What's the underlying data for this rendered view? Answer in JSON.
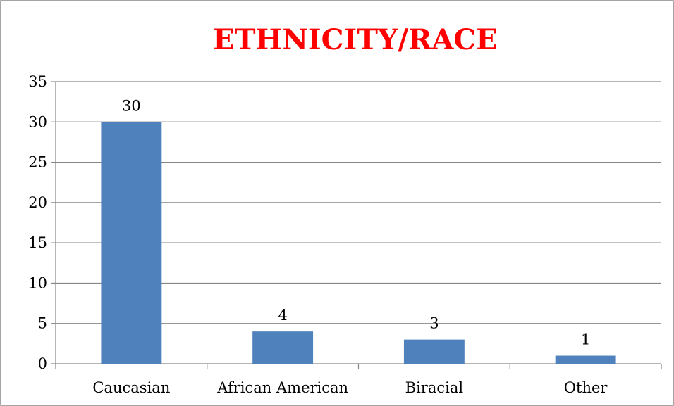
{
  "chart_data": {
    "type": "bar",
    "title": "ETHNICITY/RACE",
    "categories": [
      "Caucasian",
      "African American",
      "Biracial",
      "Other"
    ],
    "values": [
      30,
      4,
      3,
      1
    ],
    "data_labels": [
      "30",
      "4",
      "3",
      "1"
    ],
    "ylim": [
      0,
      35
    ],
    "y_ticks": [
      "0",
      "5",
      "10",
      "15",
      "20",
      "25",
      "30",
      "35"
    ],
    "grid": true,
    "legend": "none",
    "xlabel": "",
    "ylabel": ""
  },
  "colors": {
    "bar": "#4f81bd",
    "title": "#ff0000",
    "grid": "#868686",
    "border": "#868686",
    "text": "#000000"
  }
}
